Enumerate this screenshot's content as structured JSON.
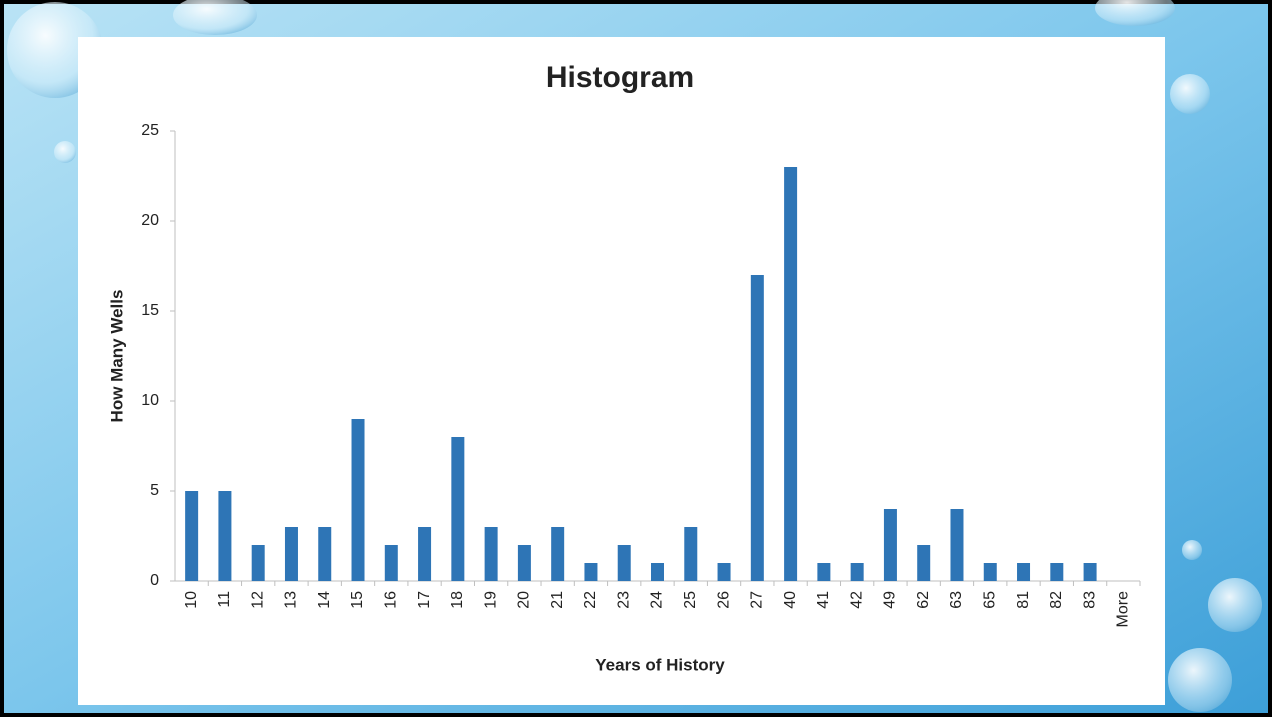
{
  "chart_data": {
    "type": "bar",
    "title": "Histogram",
    "x_label": "Years of History",
    "y_label": "How Many Wells",
    "categories": [
      "10",
      "11",
      "12",
      "13",
      "14",
      "15",
      "16",
      "17",
      "18",
      "19",
      "20",
      "21",
      "22",
      "23",
      "24",
      "25",
      "26",
      "27",
      "40",
      "41",
      "42",
      "49",
      "62",
      "63",
      "65",
      "81",
      "82",
      "83",
      "More"
    ],
    "values": [
      5,
      5,
      2,
      3,
      3,
      9,
      2,
      3,
      8,
      3,
      2,
      3,
      1,
      2,
      1,
      3,
      1,
      17,
      23,
      1,
      1,
      4,
      2,
      4,
      1,
      1,
      1,
      1,
      0
    ],
    "color": "#2e75b6",
    "ylim": [
      0,
      25
    ],
    "yticks": [
      0,
      5,
      10,
      15,
      20,
      25
    ],
    "grid": false
  }
}
